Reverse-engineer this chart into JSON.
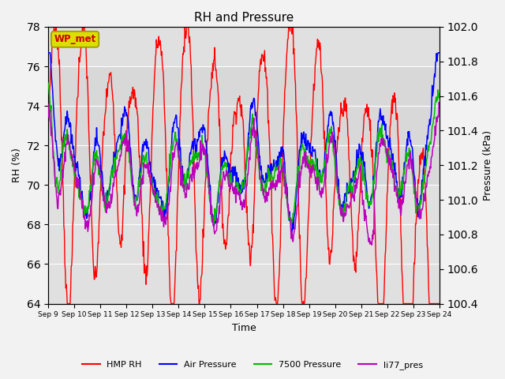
{
  "title": "RH and Pressure",
  "xlabel": "Time",
  "ylabel_left": "RH (%)",
  "ylabel_right": "Pressure (kPa)",
  "ylim_left": [
    64,
    78
  ],
  "ylim_right": [
    100.4,
    102.0
  ],
  "fig_bg": "#f2f2f2",
  "plot_bg": "#e0e0e0",
  "band_bg": "#d0d0d0",
  "x_tick_labels": [
    "Sep 9",
    "Sep 10",
    "Sep 11",
    "Sep 12",
    "Sep 13",
    "Sep 14",
    "Sep 15",
    "Sep 16",
    "Sep 17",
    "Sep 18",
    "Sep 19",
    "Sep 20",
    "Sep 21",
    "Sep 22",
    "Sep 23",
    "Sep 24"
  ],
  "legend_labels": [
    "HMP RH",
    "Air Pressure",
    "7500 Pressure",
    "li77_pres"
  ],
  "legend_colors": [
    "#ff0000",
    "#0000ff",
    "#00bb00",
    "#bb00bb"
  ],
  "station_label": "WP_met",
  "station_box_facecolor": "#dddd00",
  "station_box_edgecolor": "#999900",
  "station_text_color": "#cc0000",
  "hmp_rh_color": "#ff0000",
  "air_pressure_color": "#0000ff",
  "pressure_7500_color": "#00bb00",
  "li77_pres_color": "#bb00bb",
  "grid_color": "#ffffff",
  "yticks_left": [
    64,
    66,
    68,
    70,
    72,
    74,
    76,
    78
  ],
  "yticks_right": [
    100.4,
    100.6,
    100.8,
    101.0,
    101.2,
    101.4,
    101.6,
    101.8,
    102.0
  ]
}
